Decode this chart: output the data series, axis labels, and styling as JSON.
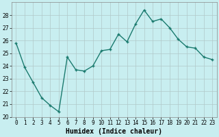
{
  "x": [
    0,
    1,
    2,
    3,
    4,
    5,
    6,
    7,
    8,
    9,
    10,
    11,
    12,
    13,
    14,
    15,
    16,
    17,
    18,
    19,
    20,
    21,
    22,
    23
  ],
  "y": [
    25.8,
    23.9,
    22.7,
    21.5,
    20.9,
    20.4,
    24.7,
    23.7,
    23.6,
    24.0,
    25.2,
    25.3,
    26.5,
    25.9,
    27.3,
    28.4,
    27.5,
    27.7,
    27.0,
    26.1,
    25.5,
    25.4,
    24.7,
    24.5
  ],
  "line_color": "#1a7a6e",
  "marker": "+",
  "marker_size": 3,
  "marker_linewidth": 1.0,
  "bg_color": "#c8eef0",
  "grid_color": "#b0c8c8",
  "xlabel": "Humidex (Indice chaleur)",
  "ylim": [
    20,
    29
  ],
  "xlim": [
    -0.5,
    23.5
  ],
  "yticks": [
    20,
    21,
    22,
    23,
    24,
    25,
    26,
    27,
    28
  ],
  "xticks": [
    0,
    1,
    2,
    3,
    4,
    5,
    6,
    7,
    8,
    9,
    10,
    11,
    12,
    13,
    14,
    15,
    16,
    17,
    18,
    19,
    20,
    21,
    22,
    23
  ],
  "xtick_labels": [
    "0",
    "1",
    "2",
    "3",
    "4",
    "5",
    "6",
    "7",
    "8",
    "9",
    "10",
    "11",
    "12",
    "13",
    "14",
    "15",
    "16",
    "17",
    "18",
    "19",
    "20",
    "21",
    "22",
    "23"
  ],
  "tick_fontsize": 5.5,
  "xlabel_fontsize": 7,
  "linewidth": 1.0
}
